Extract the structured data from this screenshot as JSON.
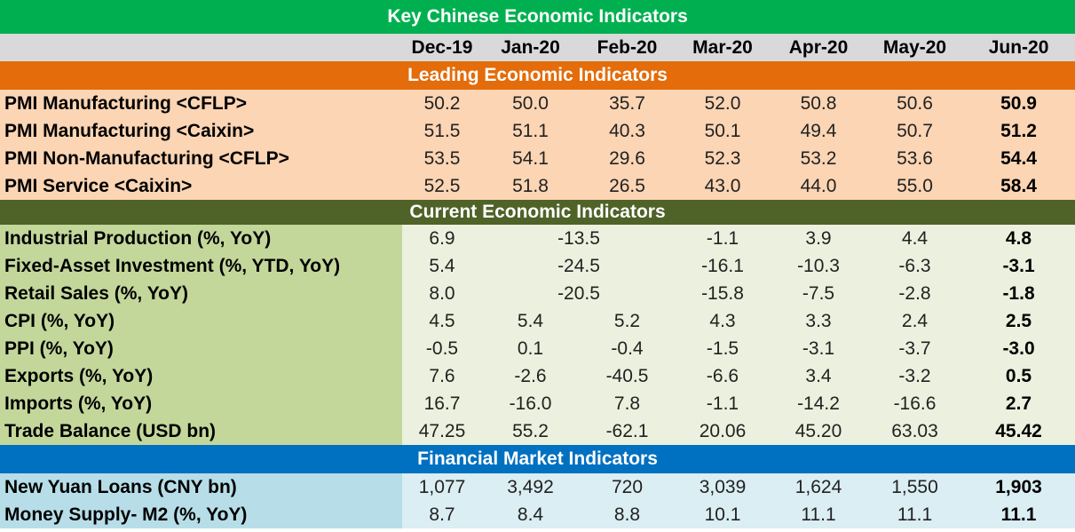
{
  "title": "Key Chinese Economic Indicators",
  "months": [
    "Dec-19",
    "Jan-20",
    "Feb-20",
    "Mar-20",
    "Apr-20",
    "May-20",
    "Jun-20"
  ],
  "sections": {
    "leading": {
      "title": "Leading Economic Indicators",
      "rows": [
        {
          "label": "PMI Manufacturing <CFLP>",
          "values": [
            "50.2",
            "50.0",
            "35.7",
            "52.0",
            "50.8",
            "50.6",
            "50.9"
          ]
        },
        {
          "label": "PMI Manufacturing <Caixin>",
          "values": [
            "51.5",
            "51.1",
            "40.3",
            "50.1",
            "49.4",
            "50.7",
            "51.2"
          ]
        },
        {
          "label": "PMI Non-Manufacturing <CFLP>",
          "values": [
            "53.5",
            "54.1",
            "29.6",
            "52.3",
            "53.2",
            "53.6",
            "54.4"
          ]
        },
        {
          "label": "PMI Service <Caixin>",
          "values": [
            "52.5",
            "51.8",
            "26.5",
            "43.0",
            "44.0",
            "55.0",
            "58.4"
          ]
        }
      ]
    },
    "current": {
      "title": "Current Economic Indicators",
      "rows": [
        {
          "label": "Industrial Production (%, YoY)",
          "values": [
            "6.9",
            "-13.5",
            "-1.1",
            "3.9",
            "4.4",
            "4.8"
          ]
        },
        {
          "label": "Fixed-Asset Investment (%, YTD, YoY)",
          "values": [
            "5.4",
            "-24.5",
            "-16.1",
            "-10.3",
            "-6.3",
            "-3.1"
          ]
        },
        {
          "label": "Retail Sales (%, YoY)",
          "values": [
            "8.0",
            "-20.5",
            "-15.8",
            "-7.5",
            "-2.8",
            "-1.8"
          ]
        },
        {
          "label": "CPI (%, YoY)",
          "values": [
            "4.5",
            "5.4",
            "5.2",
            "4.3",
            "3.3",
            "2.4",
            "2.5"
          ]
        },
        {
          "label": "PPI (%, YoY)",
          "values": [
            "-0.5",
            "0.1",
            "-0.4",
            "-1.5",
            "-3.1",
            "-3.7",
            "-3.0"
          ]
        },
        {
          "label": "Exports (%, YoY)",
          "values": [
            "7.6",
            "-2.6",
            "-40.5",
            "-6.6",
            "3.4",
            "-3.2",
            "0.5"
          ]
        },
        {
          "label": "Imports (%, YoY)",
          "values": [
            "16.7",
            "-16.0",
            "7.8",
            "-1.1",
            "-14.2",
            "-16.6",
            "2.7"
          ]
        },
        {
          "label": "Trade Balance (USD bn)",
          "values": [
            "47.25",
            "55.2",
            "-62.1",
            "20.06",
            "45.20",
            "63.03",
            "45.42"
          ]
        }
      ]
    },
    "financial": {
      "title": "Financial Market Indicators",
      "rows": [
        {
          "label": "New Yuan Loans (CNY bn)",
          "values": [
            "1,077",
            "3,492",
            "720",
            "3,039",
            "1,624",
            "1,550",
            "1,903"
          ]
        },
        {
          "label": "Money Supply- M2 (%, YoY)",
          "values": [
            "8.7",
            "8.4",
            "8.8",
            "10.1",
            "11.1",
            "11.1",
            "11.1"
          ]
        }
      ]
    }
  },
  "colors": {
    "title_bg": "#00b050",
    "leading_bg": "#e46c0a",
    "leading_rows": "#fcd5b4",
    "current_bg": "#4f6228",
    "current_label": "#c4d79b",
    "current_values": "#ebf1de",
    "financial_bg": "#0070c0",
    "financial_label": "#b7dee8",
    "financial_values": "#daeef3",
    "header_bg": "#d9d9d9"
  }
}
